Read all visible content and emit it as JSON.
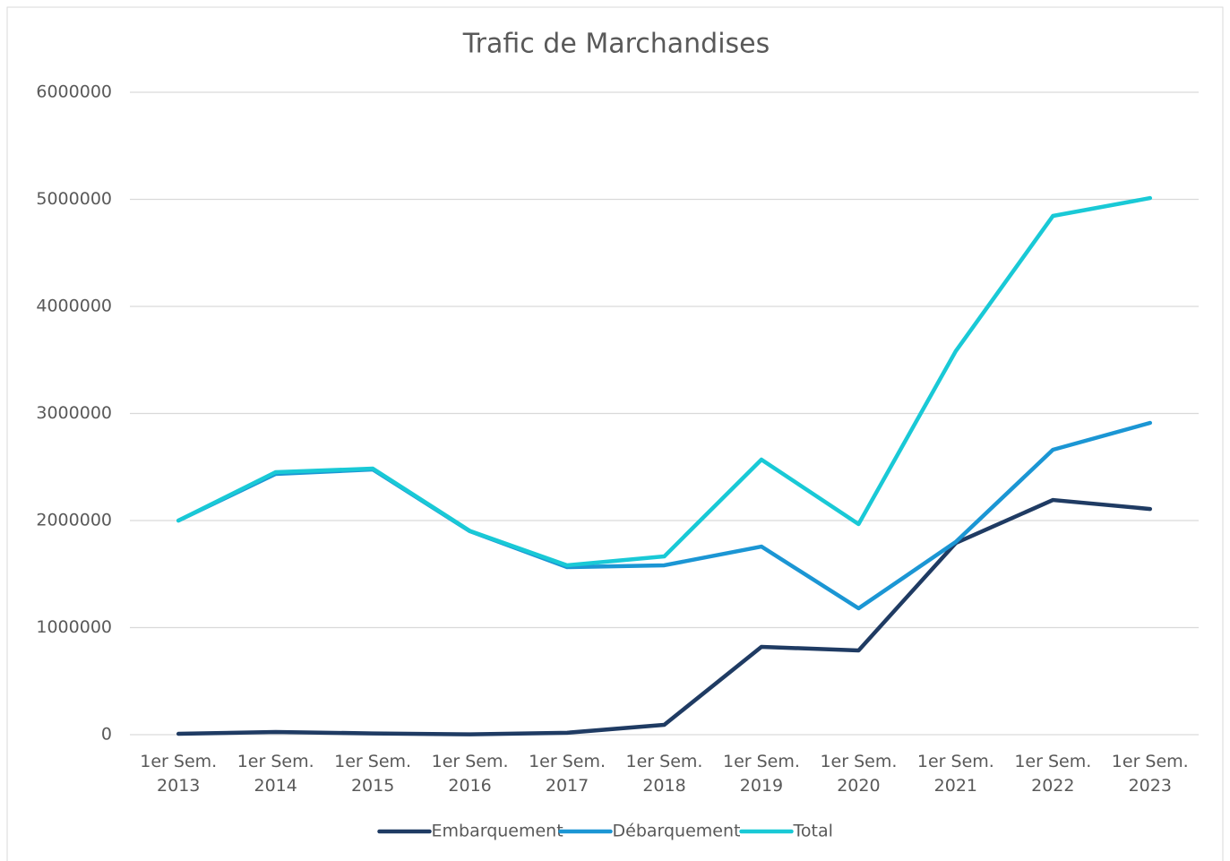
{
  "chart_data": {
    "type": "line",
    "title": "Trafic de Marchandises",
    "categories": [
      "1er Sem. 2013",
      "1er Sem. 2014",
      "1er Sem. 2015",
      "1er Sem. 2016",
      "1er Sem. 2017",
      "1er Sem. 2018",
      "1er Sem. 2019",
      "1er Sem. 2020",
      "1er Sem. 2021",
      "1er Sem. 2022",
      "1er Sem. 2023"
    ],
    "series": [
      {
        "name": "Embarquement",
        "color": "#1f3b63",
        "values": [
          8000,
          25000,
          12000,
          3000,
          18000,
          92000,
          820000,
          787000,
          1790000,
          2192000,
          2108000
        ]
      },
      {
        "name": "Débarquement",
        "color": "#1b96d4",
        "values": [
          2000000,
          2435000,
          2477000,
          1900000,
          1565000,
          1582000,
          1757000,
          1180000,
          1800000,
          2661000,
          2912000
        ]
      },
      {
        "name": "Total",
        "color": "#19c9d6",
        "values": [
          2000000,
          2452000,
          2485000,
          1903000,
          1582000,
          1665000,
          2569000,
          1967000,
          3582000,
          4845000,
          5012000
        ]
      }
    ],
    "ylim": [
      0,
      6000000
    ],
    "yticks": [
      0,
      1000000,
      2000000,
      3000000,
      4000000,
      5000000,
      6000000
    ],
    "grid": true,
    "legend": "bottom"
  }
}
